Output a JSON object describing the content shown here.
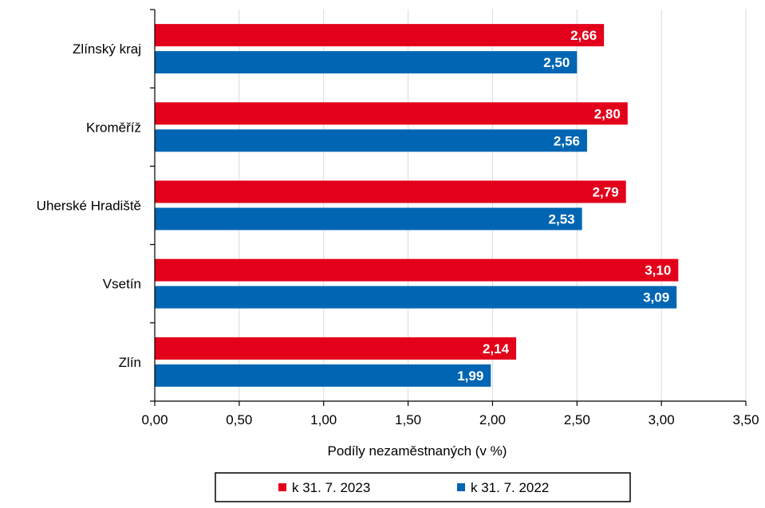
{
  "chart_data": {
    "type": "bar",
    "orientation": "horizontal",
    "categories": [
      "Zlínský kraj",
      "Kroměříž",
      "Uherské Hradiště",
      "Vsetín",
      "Zlín"
    ],
    "series": [
      {
        "name": "k 31. 7. 2023",
        "color": "#E3001B",
        "values": [
          2.66,
          2.8,
          2.79,
          3.1,
          2.14
        ],
        "labels": [
          "2,66",
          "2,80",
          "2,79",
          "3,10",
          "2,14"
        ]
      },
      {
        "name": "k 31. 7. 2022",
        "color": "#0066B3",
        "values": [
          2.5,
          2.56,
          2.53,
          3.09,
          1.99
        ],
        "labels": [
          "2,50",
          "2,56",
          "2,53",
          "3,09",
          "1,99"
        ]
      }
    ],
    "xlabel": "Podíly nezaměstnaných (v %)",
    "ylabel": "",
    "xlim": [
      0,
      3.5
    ],
    "x_ticks": [
      0,
      0.5,
      1.0,
      1.5,
      2.0,
      2.5,
      3.0,
      3.5
    ],
    "x_tick_labels": [
      "0,00",
      "0,50",
      "1,00",
      "1,50",
      "2,00",
      "2,50",
      "3,00",
      "3,50"
    ],
    "grid": "vertical",
    "legend_position": "bottom"
  }
}
